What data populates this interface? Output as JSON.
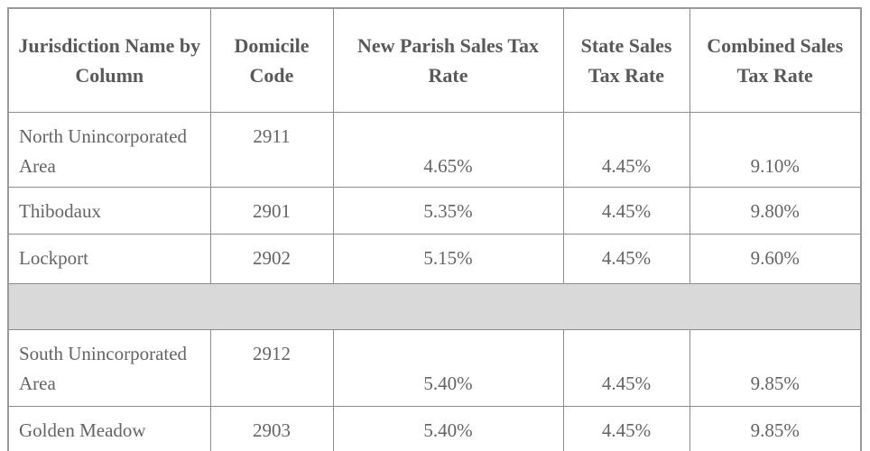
{
  "table": {
    "columns": [
      "Jurisdiction Name by Column",
      "Domicile Code",
      "New Parish Sales Tax Rate",
      "State Sales Tax Rate",
      "Combined Sales Tax Rate"
    ],
    "rows": [
      {
        "name": "North Unincorporated Area",
        "code": "2911",
        "parish_rate": "4.65%",
        "state_rate": "4.45%",
        "combined_rate": "9.10%"
      },
      {
        "name": "Thibodaux",
        "code": "2901",
        "parish_rate": "5.35%",
        "state_rate": "4.45%",
        "combined_rate": "9.80%"
      },
      {
        "name": "Lockport",
        "code": "2902",
        "parish_rate": "5.15%",
        "state_rate": "4.45%",
        "combined_rate": "9.60%"
      },
      {
        "name": "South Unincorporated Area",
        "code": "2912",
        "parish_rate": "5.40%",
        "state_rate": "4.45%",
        "combined_rate": "9.85%"
      },
      {
        "name": "Golden Meadow",
        "code": "2903",
        "parish_rate": "5.40%",
        "state_rate": "4.45%",
        "combined_rate": "9.85%"
      }
    ],
    "colors": {
      "border": "#8c8c8c",
      "outer_border": "#9a9a9a",
      "header_text": "#595959",
      "body_text": "#646464",
      "separator_fill": "#d9d9d9",
      "background": "#ffffff"
    }
  }
}
